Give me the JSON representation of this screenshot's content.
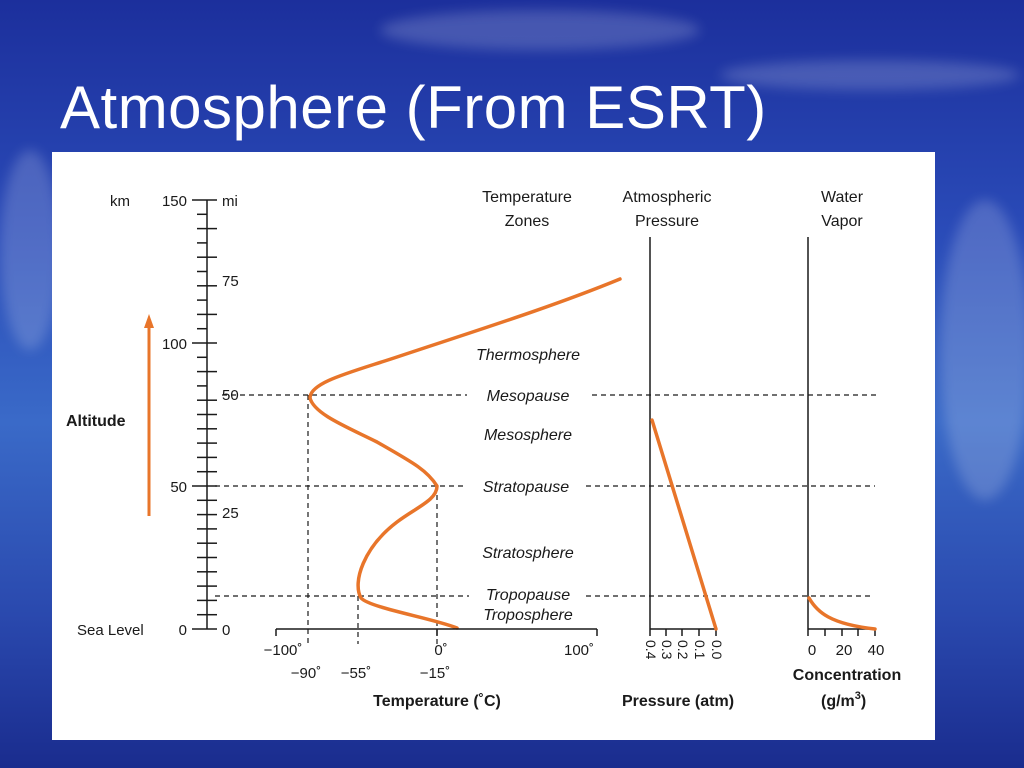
{
  "slide": {
    "title": "Atmosphere (From ESRT)"
  },
  "colors": {
    "curve": "#e8752a",
    "background": "#2a4bb8",
    "panel": "#ffffff"
  },
  "altitude_scale": {
    "km_label": "km",
    "mi_label": "mi",
    "km_ticks": [
      "150",
      "100",
      "50"
    ],
    "mi_ticks": [
      "75",
      "50",
      "25",
      "0"
    ],
    "sea_level_label": "Sea Level",
    "sea_level_value": "0",
    "axis_title": "Altitude"
  },
  "headers": {
    "temperature_zones": [
      "Temperature",
      "Zones"
    ],
    "atmospheric_pressure": [
      "Atmospheric",
      "Pressure"
    ],
    "water_vapor": [
      "Water",
      "Vapor"
    ]
  },
  "zones": {
    "thermosphere": "Thermosphere",
    "mesopause": "Mesopause",
    "mesosphere": "Mesosphere",
    "stratopause": "Stratopause",
    "stratosphere": "Stratosphere",
    "tropopause": "Tropopause",
    "troposphere": "Troposphere"
  },
  "temperature_axis": {
    "top_ticks": [
      "−100˚",
      "0˚",
      "100˚"
    ],
    "bottom_ticks": [
      "−90˚",
      "−55˚",
      "−15˚"
    ],
    "title": "Temperature (˚C)"
  },
  "pressure_axis": {
    "ticks": [
      "0.4",
      "0.3",
      "0.2",
      "0.1",
      "0.0"
    ],
    "title": "Pressure (atm)"
  },
  "vapor_axis": {
    "ticks": [
      "0",
      "20",
      "40"
    ],
    "title_line1": "Concentration",
    "title_line2": "(g/m",
    "title_sup": "3",
    "title_end": ")"
  }
}
